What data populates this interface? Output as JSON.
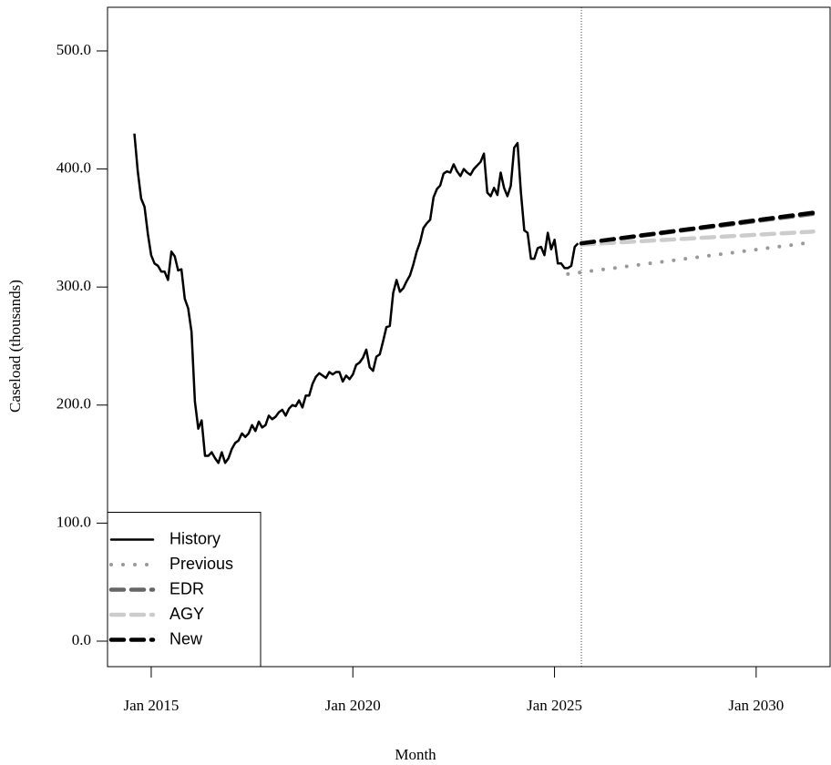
{
  "chart_data": {
    "type": "line",
    "xlabel": "Month",
    "ylabel": "Caseload (thousands)",
    "xlim": [
      "2013-12",
      "2031-11"
    ],
    "xticks": [
      {
        "value": "2015-01",
        "label": "Jan 2015"
      },
      {
        "value": "2020-01",
        "label": "Jan 2020"
      },
      {
        "value": "2025-01",
        "label": "Jan 2025"
      },
      {
        "value": "2030-01",
        "label": "Jan 2030"
      }
    ],
    "ylim": [
      -21.6,
      537
    ],
    "yticks": [
      {
        "value": 0,
        "label": "0.0"
      },
      {
        "value": 100,
        "label": "100.0"
      },
      {
        "value": 200,
        "label": "200.0"
      },
      {
        "value": 300,
        "label": "300.0"
      },
      {
        "value": 400,
        "label": "400.0"
      },
      {
        "value": 500,
        "label": "500.0"
      }
    ],
    "vline_x": "2025-09",
    "legend": "bottomleft",
    "series": [
      {
        "name": "History",
        "color": "#000000",
        "style": "solid",
        "x": [
          "2014-08",
          "2014-09",
          "2014-10",
          "2014-11",
          "2014-12",
          "2015-01",
          "2015-02",
          "2015-03",
          "2015-04",
          "2015-05",
          "2015-06",
          "2015-07",
          "2015-08",
          "2015-09",
          "2015-10",
          "2015-11",
          "2015-12",
          "2016-01",
          "2016-02",
          "2016-03",
          "2016-04",
          "2016-05",
          "2016-06",
          "2016-07",
          "2016-08",
          "2016-09",
          "2016-10",
          "2016-11",
          "2016-12",
          "2017-01",
          "2017-02",
          "2017-03",
          "2017-04",
          "2017-05",
          "2017-06",
          "2017-07",
          "2017-08",
          "2017-09",
          "2017-10",
          "2017-11",
          "2017-12",
          "2018-01",
          "2018-02",
          "2018-03",
          "2018-04",
          "2018-05",
          "2018-06",
          "2018-07",
          "2018-08",
          "2018-09",
          "2018-10",
          "2018-11",
          "2018-12",
          "2019-01",
          "2019-02",
          "2019-03",
          "2019-04",
          "2019-05",
          "2019-06",
          "2019-07",
          "2019-08",
          "2019-09",
          "2019-10",
          "2019-11",
          "2019-12",
          "2020-01",
          "2020-02",
          "2020-03",
          "2020-04",
          "2020-05",
          "2020-06",
          "2020-07",
          "2020-08",
          "2020-09",
          "2020-10",
          "2020-11",
          "2020-12",
          "2021-01",
          "2021-02",
          "2021-03",
          "2021-04",
          "2021-05",
          "2021-06",
          "2021-07",
          "2021-08",
          "2021-09",
          "2021-10",
          "2021-11",
          "2021-12",
          "2022-01",
          "2022-02",
          "2022-03",
          "2022-04",
          "2022-05",
          "2022-06",
          "2022-07",
          "2022-08",
          "2022-09",
          "2022-10",
          "2022-11",
          "2022-12",
          "2023-01",
          "2023-02",
          "2023-03",
          "2023-04",
          "2023-05",
          "2023-06",
          "2023-07",
          "2023-08",
          "2023-09",
          "2023-10",
          "2023-11",
          "2023-12",
          "2024-01",
          "2024-02",
          "2024-03",
          "2024-04",
          "2024-05",
          "2024-06",
          "2024-07",
          "2024-08",
          "2024-09",
          "2024-10",
          "2024-11",
          "2024-12",
          "2025-01",
          "2025-02",
          "2025-03",
          "2025-04",
          "2025-05",
          "2025-06",
          "2025-07",
          "2025-08"
        ],
        "values": [
          430,
          398,
          375,
          368,
          345,
          327,
          320,
          318,
          313,
          313,
          306,
          330,
          326,
          314,
          315,
          290,
          282,
          262,
          203,
          180,
          187,
          157,
          157,
          160,
          155,
          151,
          160,
          151,
          155,
          163,
          168,
          170,
          176,
          173,
          176,
          183,
          178,
          186,
          181,
          183,
          191,
          188,
          190,
          194,
          196,
          191,
          197,
          200,
          199,
          204,
          198,
          208,
          208,
          218,
          224,
          227,
          225,
          223,
          228,
          226,
          228,
          228,
          220,
          225,
          222,
          226,
          234,
          236,
          240,
          247,
          232,
          229,
          241,
          243,
          254,
          266,
          267,
          295,
          306,
          296,
          299,
          305,
          310,
          319,
          330,
          338,
          350,
          354,
          357,
          376,
          383,
          386,
          396,
          398,
          397,
          404,
          398,
          394,
          400,
          397,
          395,
          400,
          403,
          406,
          413,
          380,
          377,
          384,
          378,
          397,
          384,
          377,
          386,
          418,
          422,
          380,
          348,
          346,
          324,
          324,
          333,
          334,
          327,
          346,
          332,
          340,
          320,
          320,
          316,
          316,
          318,
          334,
          337
        ]
      },
      {
        "name": "Previous",
        "color": "#999999",
        "style": "dotted",
        "x": [
          "2025-05",
          "2031-06"
        ],
        "values": [
          311,
          338
        ]
      },
      {
        "name": "EDR",
        "color": "#666666",
        "style": "dashed",
        "x": [
          "2025-09",
          "2031-06"
        ],
        "values": [
          337,
          362
        ]
      },
      {
        "name": "AGY",
        "color": "#cccccc",
        "style": "dashed",
        "x": [
          "2025-09",
          "2031-06"
        ],
        "values": [
          336,
          347
        ]
      },
      {
        "name": "New",
        "color": "#000000",
        "style": "dashed",
        "x": [
          "2025-09",
          "2031-06"
        ],
        "values": [
          337,
          363
        ]
      }
    ]
  }
}
